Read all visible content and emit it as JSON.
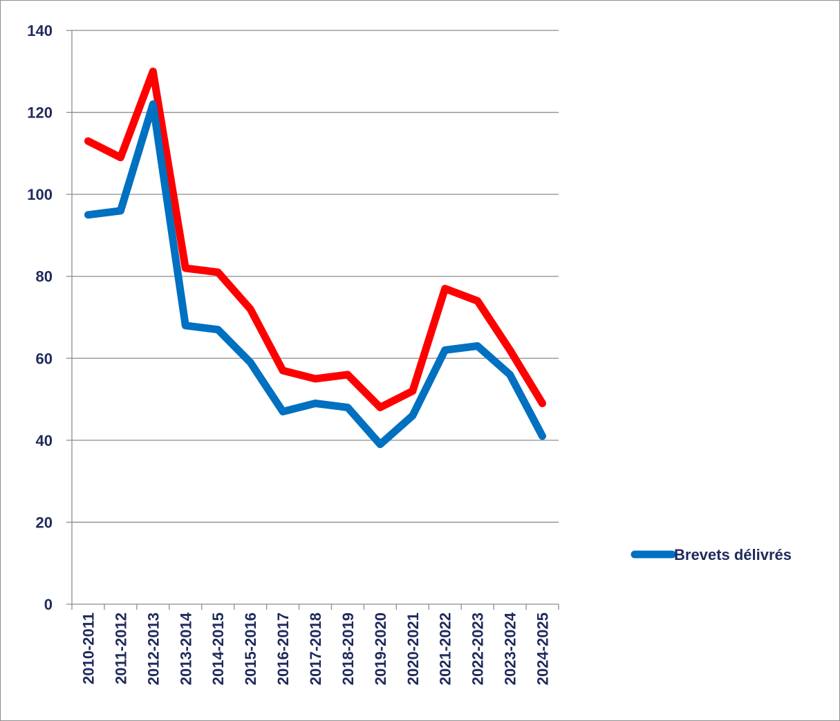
{
  "chart_data": {
    "type": "line",
    "title": "",
    "xlabel": "",
    "ylabel": "",
    "ylim": [
      0,
      140
    ],
    "y_ticks": [
      0,
      20,
      40,
      60,
      80,
      100,
      120,
      140
    ],
    "grid": true,
    "legend_position": "right",
    "categories": [
      "2010-2011",
      "2011-2012",
      "2012-2013",
      "2013-2014",
      "2014-2015",
      "2015-2016",
      "2016-2017",
      "2017-2018",
      "2018-2019",
      "2019-2020",
      "2020-2021",
      "2021-2022",
      "2022-2023",
      "2023-2024",
      "2024-2025"
    ],
    "series": [
      {
        "name": "",
        "color": "#ff0000",
        "in_legend": false,
        "values": [
          113,
          109,
          130,
          82,
          81,
          72,
          57,
          55,
          56,
          48,
          52,
          77,
          74,
          62,
          49
        ]
      },
      {
        "name": "Brevets délivrés",
        "color": "#0070c0",
        "in_legend": true,
        "values": [
          95,
          96,
          122,
          68,
          67,
          59,
          47,
          49,
          48,
          39,
          46,
          62,
          63,
          56,
          41
        ]
      }
    ]
  }
}
